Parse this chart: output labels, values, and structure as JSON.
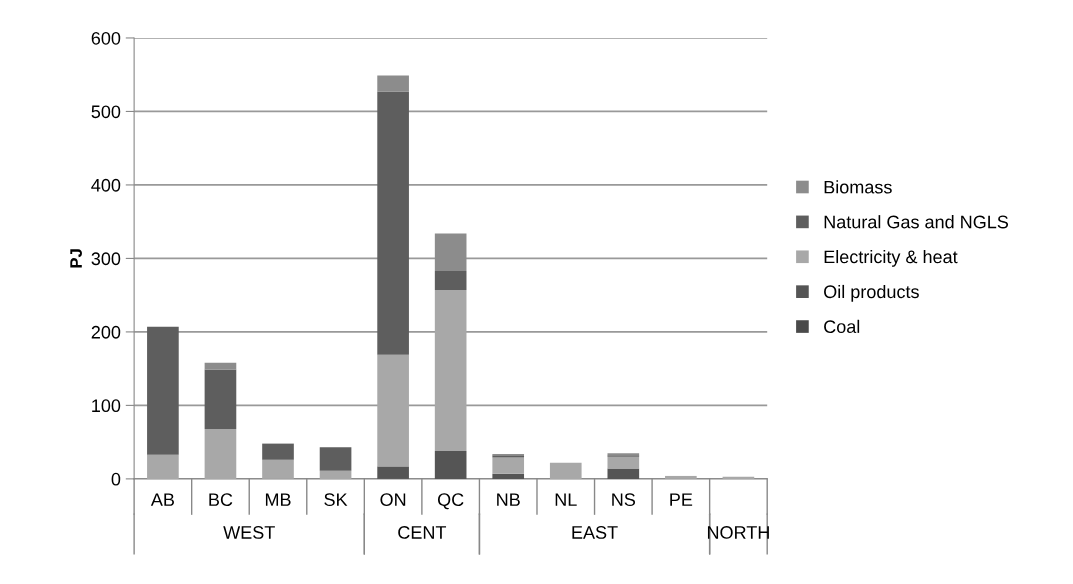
{
  "chart_data": {
    "type": "bar",
    "stacked": true,
    "ylabel": "PJ",
    "categories": [
      "AB",
      "BC",
      "MB",
      "SK",
      "ON",
      "QC",
      "NB",
      "NL",
      "NS",
      "PE",
      null
    ],
    "series": [
      {
        "name": "Coal",
        "color": "#4a4a4a",
        "values": [
          0,
          0,
          0,
          0,
          0,
          0,
          0,
          0,
          0,
          0,
          0
        ]
      },
      {
        "name": "Oil products",
        "color": "#555555",
        "values": [
          0,
          0,
          0,
          0,
          17,
          38,
          7,
          0,
          14,
          0,
          0
        ]
      },
      {
        "name": "Electricity & heat",
        "color": "#a8a8a8",
        "values": [
          33,
          68,
          26,
          11,
          152,
          219,
          22,
          22,
          16,
          4,
          3
        ]
      },
      {
        "name": "Natural Gas and NGLS",
        "color": "#5e5e5e",
        "values": [
          174,
          81,
          22,
          32,
          358,
          26,
          3,
          0,
          2,
          0,
          0
        ]
      },
      {
        "name": "Biomass",
        "color": "#8c8c8c",
        "values": [
          0,
          9,
          0,
          0,
          22,
          51,
          2,
          0,
          3,
          0,
          0
        ]
      }
    ],
    "ylim": [
      0,
      600
    ],
    "yticks": [
      0,
      100,
      200,
      300,
      400,
      500,
      600
    ],
    "grid": "y",
    "legend": "right",
    "annotations": [
      "WEST",
      "CENT",
      "EAST",
      "NORTH"
    ]
  }
}
